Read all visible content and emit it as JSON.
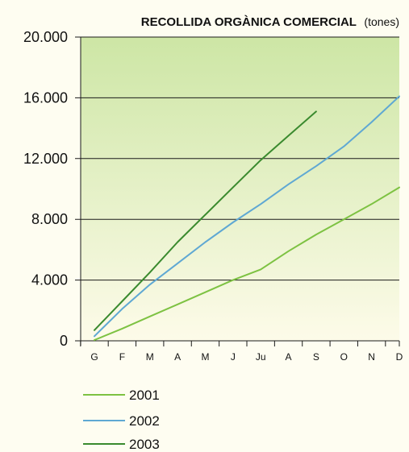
{
  "chart_data": {
    "type": "line",
    "title": "RECOLLIDA ORGÀNICA COMERCIAL",
    "unit": "(tones)",
    "xlabel": "",
    "ylabel": "",
    "categories": [
      "G",
      "F",
      "M",
      "A",
      "M",
      "J",
      "Ju",
      "A",
      "S",
      "O",
      "N",
      "D"
    ],
    "ylim": [
      0,
      20000
    ],
    "yticks": [
      {
        "value": 0,
        "label": "0"
      },
      {
        "value": 4000,
        "label": "4.000"
      },
      {
        "value": 8000,
        "label": "8.000"
      },
      {
        "value": 12000,
        "label": "12.000"
      },
      {
        "value": 16000,
        "label": "16.000"
      },
      {
        "value": 20000,
        "label": "20.000"
      }
    ],
    "grid": true,
    "legend_position": "bottom-left",
    "series": [
      {
        "name": "2001",
        "color": "#7dc242",
        "values": [
          50,
          800,
          1600,
          2400,
          3200,
          4000,
          4700,
          5900,
          7000,
          8000,
          9000,
          10100
        ]
      },
      {
        "name": "2002",
        "color": "#5fa8d3",
        "values": [
          300,
          2100,
          3700,
          5100,
          6500,
          7800,
          9000,
          10300,
          11500,
          12800,
          14400,
          16100
        ]
      },
      {
        "name": "2003",
        "color": "#3a8a2e",
        "values": [
          700,
          2600,
          4500,
          6500,
          8300,
          10100,
          11900,
          13500,
          15100,
          null,
          null,
          null
        ]
      }
    ]
  }
}
